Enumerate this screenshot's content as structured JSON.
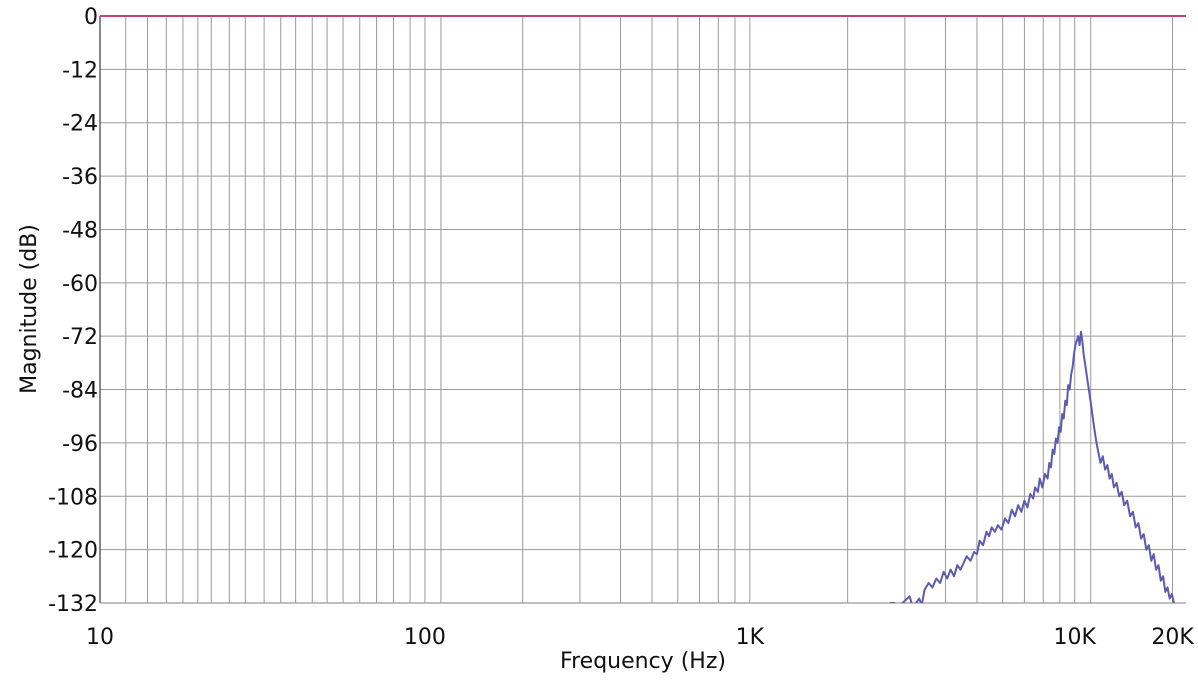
{
  "chart_data": {
    "type": "line",
    "title": "",
    "xlabel": "Frequency (Hz)",
    "ylabel": "Magnitude (dB)",
    "x_scale": "log",
    "xlim": [
      10,
      22000
    ],
    "ylim": [
      -132,
      0
    ],
    "grid": true,
    "legend": "none",
    "y_ticks": [
      0,
      -12,
      -24,
      -36,
      -48,
      -60,
      -72,
      -84,
      -96,
      -108,
      -120,
      -132
    ],
    "y_tick_labels": [
      "0",
      "-12",
      "-24",
      "-36",
      "-48",
      "-60",
      "-72",
      "-84",
      "-96",
      "-108",
      "-120",
      "-132"
    ],
    "x_tick_labels": [
      {
        "value": 10,
        "label": "10"
      },
      {
        "value": 100,
        "label": "100"
      },
      {
        "value": 1000,
        "label": "1K"
      },
      {
        "value": 10000,
        "label": "10K"
      },
      {
        "value": 20000,
        "label": "20K"
      }
    ],
    "x_minor_gridlines": [
      12,
      14,
      16,
      18,
      20,
      22,
      25,
      28,
      32,
      36,
      40,
      45,
      50,
      56,
      63,
      71,
      80,
      90,
      100,
      112,
      200,
      300,
      400,
      500,
      600,
      700,
      800,
      900,
      1000,
      2000,
      3000,
      4000,
      5000,
      6000,
      7000,
      8000,
      9000,
      10000,
      11200,
      20000
    ],
    "colors": {
      "grid": "#9a9a9a",
      "axis": "#3a3a3a",
      "zero_line": "#c2417a",
      "series": "#5b5bb0"
    },
    "series": [
      {
        "color": "#5b5bb0",
        "points": [
          [
            2700,
            -132
          ],
          [
            2780,
            -132
          ],
          [
            2850,
            -133
          ],
          [
            2950,
            -132
          ],
          [
            3000,
            -131.5
          ],
          [
            3100,
            -130.5
          ],
          [
            3180,
            -133
          ],
          [
            3250,
            -132
          ],
          [
            3320,
            -131
          ],
          [
            3380,
            -132.5
          ],
          [
            3450,
            -129
          ],
          [
            3550,
            -127.5
          ],
          [
            3650,
            -128.5
          ],
          [
            3750,
            -126.5
          ],
          [
            3850,
            -127.5
          ],
          [
            3950,
            -125
          ],
          [
            4050,
            -126.5
          ],
          [
            4150,
            -124.5
          ],
          [
            4250,
            -126
          ],
          [
            4350,
            -123.5
          ],
          [
            4450,
            -124.5
          ],
          [
            4550,
            -123
          ],
          [
            4650,
            -121.5
          ],
          [
            4780,
            -122.5
          ],
          [
            4900,
            -120.5
          ],
          [
            5000,
            -121
          ],
          [
            5100,
            -118
          ],
          [
            5220,
            -119
          ],
          [
            5350,
            -116
          ],
          [
            5450,
            -117
          ],
          [
            5550,
            -115
          ],
          [
            5680,
            -116
          ],
          [
            5800,
            -114.5
          ],
          [
            5950,
            -115.5
          ],
          [
            6100,
            -113
          ],
          [
            6250,
            -114
          ],
          [
            6400,
            -111
          ],
          [
            6550,
            -112.5
          ],
          [
            6700,
            -110
          ],
          [
            6850,
            -111.5
          ],
          [
            7000,
            -109
          ],
          [
            7150,
            -110.5
          ],
          [
            7300,
            -107.5
          ],
          [
            7450,
            -108.5
          ],
          [
            7550,
            -106
          ],
          [
            7700,
            -107
          ],
          [
            7800,
            -104
          ],
          [
            7950,
            -106
          ],
          [
            8100,
            -103
          ],
          [
            8250,
            -104
          ],
          [
            8350,
            -100.5
          ],
          [
            8450,
            -101.5
          ],
          [
            8550,
            -97.5
          ],
          [
            8650,
            -98.5
          ],
          [
            8750,
            -95
          ],
          [
            8850,
            -96
          ],
          [
            8950,
            -92.5
          ],
          [
            9050,
            -93.5
          ],
          [
            9150,
            -89.5
          ],
          [
            9250,
            -90.5
          ],
          [
            9350,
            -86.5
          ],
          [
            9450,
            -87.5
          ],
          [
            9550,
            -83
          ],
          [
            9650,
            -84
          ],
          [
            9750,
            -80.5
          ],
          [
            9850,
            -79
          ],
          [
            9950,
            -76
          ],
          [
            10050,
            -74
          ],
          [
            10150,
            -73
          ],
          [
            10250,
            -72
          ],
          [
            10350,
            -74
          ],
          [
            10450,
            -71
          ],
          [
            10550,
            -73
          ],
          [
            10650,
            -76
          ],
          [
            10800,
            -79
          ],
          [
            10950,
            -82
          ],
          [
            11100,
            -85
          ],
          [
            11250,
            -88
          ],
          [
            11400,
            -91
          ],
          [
            11550,
            -94
          ],
          [
            11700,
            -96.5
          ],
          [
            11850,
            -98.5
          ],
          [
            12000,
            -100.5
          ],
          [
            12200,
            -99
          ],
          [
            12400,
            -102
          ],
          [
            12600,
            -101
          ],
          [
            12800,
            -104
          ],
          [
            13000,
            -103
          ],
          [
            13200,
            -106
          ],
          [
            13450,
            -105
          ],
          [
            13700,
            -108
          ],
          [
            13950,
            -107
          ],
          [
            14200,
            -110
          ],
          [
            14500,
            -109
          ],
          [
            14800,
            -112.5
          ],
          [
            15100,
            -111.5
          ],
          [
            15400,
            -115
          ],
          [
            15700,
            -114
          ],
          [
            16000,
            -117.5
          ],
          [
            16300,
            -116.5
          ],
          [
            16600,
            -120
          ],
          [
            16900,
            -119
          ],
          [
            17200,
            -122.5
          ],
          [
            17500,
            -121
          ],
          [
            17800,
            -124.5
          ],
          [
            18100,
            -123.5
          ],
          [
            18400,
            -127
          ],
          [
            18700,
            -126
          ],
          [
            19000,
            -129.5
          ],
          [
            19300,
            -128.5
          ],
          [
            19600,
            -131
          ],
          [
            19900,
            -130
          ],
          [
            20200,
            -132
          ]
        ]
      }
    ]
  }
}
